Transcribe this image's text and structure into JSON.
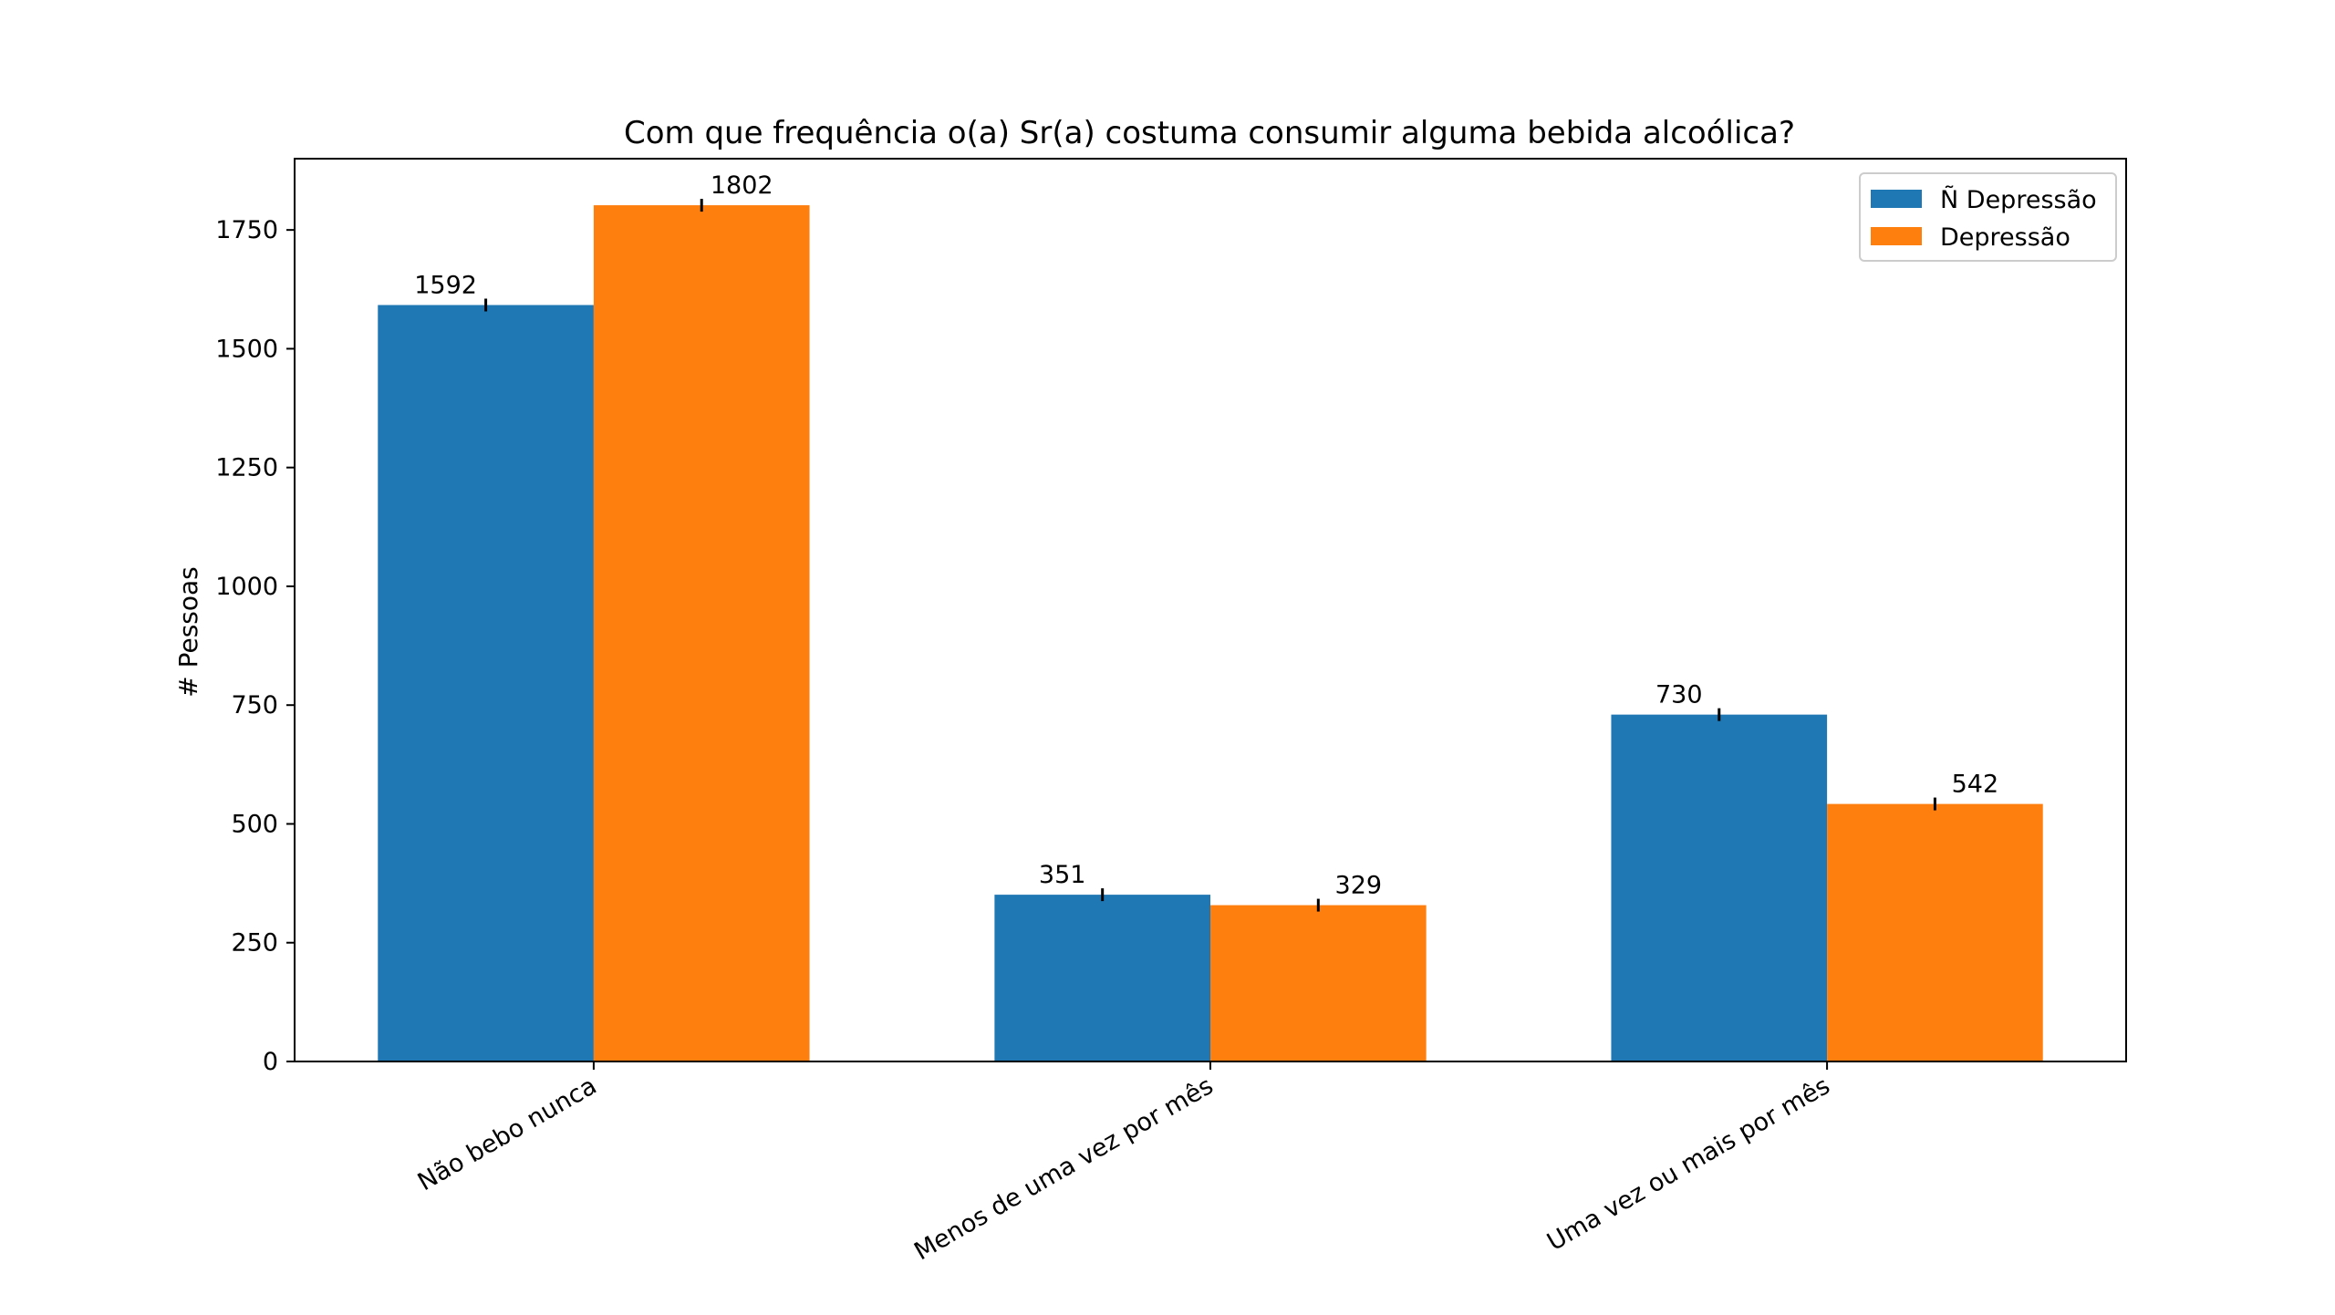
{
  "chart_data": {
    "type": "bar",
    "title": "Com que frequência o(a) Sr(a) costuma consumir alguma bebida alcoólica?",
    "xlabel": "",
    "ylabel": "# Pessoas",
    "categories": [
      "Não bebo nunca",
      "Menos de uma vez por mês",
      "Uma vez ou mais por mês"
    ],
    "series": [
      {
        "name": "Ñ Depressão",
        "values": [
          1592,
          351,
          730
        ],
        "color": "#1f77b4"
      },
      {
        "name": "Depressão",
        "values": [
          1802,
          329,
          542
        ],
        "color": "#ff7f0e"
      }
    ],
    "ylim": [
      0,
      1900
    ],
    "yticks": [
      0,
      250,
      500,
      750,
      1000,
      1250,
      1500,
      1750
    ],
    "ytick_labels": [
      "0",
      "250",
      "500",
      "750",
      "1000",
      "1250",
      "1500",
      "1750"
    ],
    "grid": false,
    "legend_position": "top-right",
    "error_bars": true,
    "xtick_rotation": "30 degrees"
  }
}
